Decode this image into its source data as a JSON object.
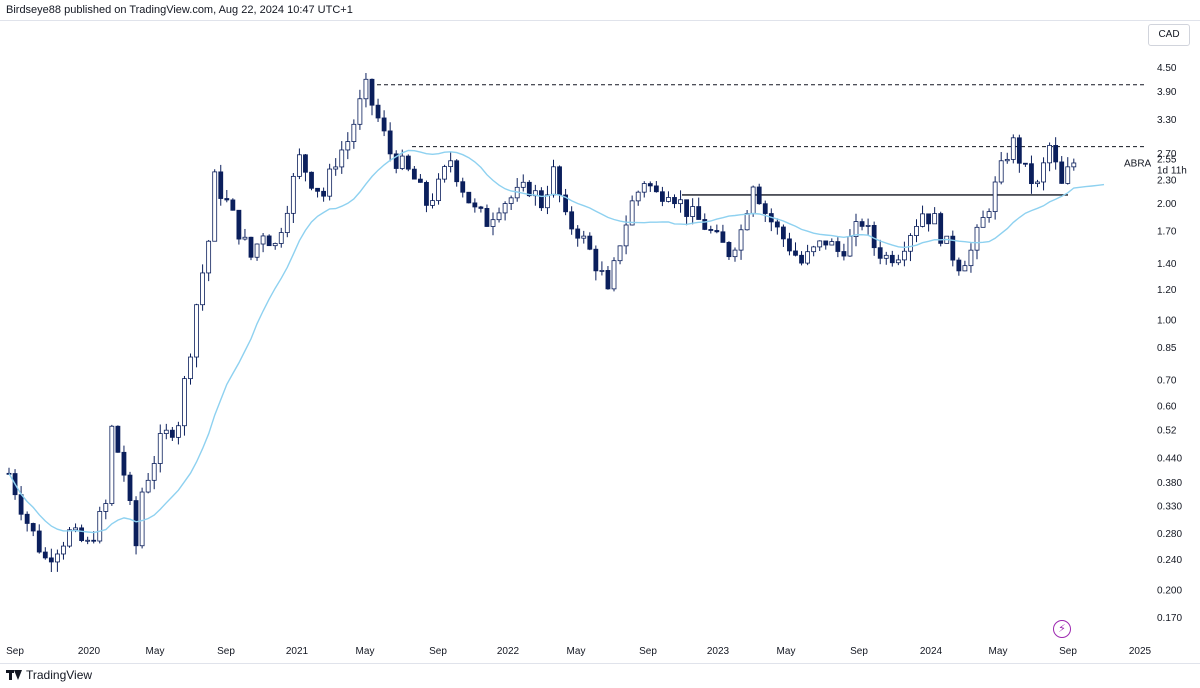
{
  "header": {
    "text": "Birdseye88 published on TradingView.com, Aug 22, 2024 10:47 UTC+1"
  },
  "currency": "CAD",
  "footer": {
    "brand": "TradingView"
  },
  "colors": {
    "up": "#ffffff",
    "down": "#0b1f5c",
    "ma": "#8ed1f0",
    "line": "#131722"
  },
  "icons": {
    "event": "lightning-icon",
    "logo": "tradingview-logo-icon"
  },
  "chart_data": {
    "type": "candlestick",
    "symbol": "ABRA",
    "last_price": "2.55",
    "countdown": "1d 11h",
    "yscale": "log",
    "ylim": [
      0.155,
      5.0
    ],
    "y_ticks": [
      "4.50",
      "3.90",
      "3.30",
      "2.70",
      "2.30",
      "2.00",
      "1.70",
      "1.40",
      "1.20",
      "1.00",
      "0.85",
      "0.70",
      "0.60",
      "0.52",
      "0.440",
      "0.380",
      "0.330",
      "0.280",
      "0.240",
      "0.200",
      "0.170"
    ],
    "x_ticks": [
      "Sep",
      "2020",
      "May",
      "Sep",
      "2021",
      "May",
      "Sep",
      "2022",
      "May",
      "Sep",
      "2023",
      "May",
      "Sep",
      "2024",
      "May",
      "Sep",
      "2025"
    ],
    "levels": [
      {
        "price": 4.05,
        "style": "dashed",
        "from_tick": "May 2021"
      },
      {
        "price": 2.8,
        "style": "dashed",
        "from_tick": "Sep 2021"
      },
      {
        "price": 2.1,
        "style": "solid",
        "from_tick": "Sep 2022"
      }
    ],
    "price_path": [
      [
        0,
        0.4
      ],
      [
        3,
        0.3
      ],
      [
        6,
        0.24
      ],
      [
        10,
        0.28
      ],
      [
        13,
        0.26
      ],
      [
        16,
        0.33
      ],
      [
        17,
        0.52
      ],
      [
        19,
        0.4
      ],
      [
        21,
        0.26
      ],
      [
        22,
        0.36
      ],
      [
        25,
        0.48
      ],
      [
        28,
        0.55
      ],
      [
        30,
        0.85
      ],
      [
        31,
        1.1
      ],
      [
        33,
        1.6
      ],
      [
        34,
        2.3
      ],
      [
        36,
        2.0
      ],
      [
        38,
        1.7
      ],
      [
        40,
        1.45
      ],
      [
        42,
        1.7
      ],
      [
        44,
        1.55
      ],
      [
        46,
        2.0
      ],
      [
        48,
        2.6
      ],
      [
        50,
        2.3
      ],
      [
        52,
        2.1
      ],
      [
        54,
        2.6
      ],
      [
        56,
        2.9
      ],
      [
        58,
        3.6
      ],
      [
        59,
        3.95
      ],
      [
        61,
        3.3
      ],
      [
        63,
        2.7
      ],
      [
        65,
        2.5
      ],
      [
        67,
        2.3
      ],
      [
        69,
        2.0
      ],
      [
        71,
        2.2
      ],
      [
        73,
        2.6
      ],
      [
        75,
        2.2
      ],
      [
        77,
        1.9
      ],
      [
        79,
        1.8
      ],
      [
        81,
        2.0
      ],
      [
        84,
        2.1
      ],
      [
        86,
        2.2
      ],
      [
        88,
        2.0
      ],
      [
        90,
        2.4
      ],
      [
        92,
        1.8
      ],
      [
        94,
        1.7
      ],
      [
        96,
        1.5
      ],
      [
        98,
        1.3
      ],
      [
        99,
        1.15
      ],
      [
        101,
        1.6
      ],
      [
        103,
        2.0
      ],
      [
        105,
        2.3
      ],
      [
        107,
        2.1
      ],
      [
        109,
        2.2
      ],
      [
        111,
        2.0
      ],
      [
        113,
        1.85
      ],
      [
        115,
        1.75
      ],
      [
        117,
        1.6
      ],
      [
        119,
        1.5
      ],
      [
        121,
        1.7
      ],
      [
        123,
        2.3
      ],
      [
        125,
        1.9
      ],
      [
        127,
        1.7
      ],
      [
        129,
        1.55
      ],
      [
        131,
        1.4
      ],
      [
        133,
        1.5
      ],
      [
        135,
        1.6
      ],
      [
        137,
        1.5
      ],
      [
        139,
        1.6
      ],
      [
        141,
        1.8
      ],
      [
        143,
        1.55
      ],
      [
        145,
        1.45
      ],
      [
        147,
        1.5
      ],
      [
        149,
        1.7
      ],
      [
        151,
        1.9
      ],
      [
        153,
        1.8
      ],
      [
        155,
        1.55
      ],
      [
        157,
        1.4
      ],
      [
        159,
        1.5
      ],
      [
        161,
        1.8
      ],
      [
        163,
        2.2
      ],
      [
        165,
        2.7
      ],
      [
        166,
        2.85
      ],
      [
        168,
        2.4
      ],
      [
        170,
        2.2
      ],
      [
        172,
        2.8
      ],
      [
        174,
        2.2
      ],
      [
        175,
        2.4
      ],
      [
        176,
        2.55
      ]
    ]
  }
}
